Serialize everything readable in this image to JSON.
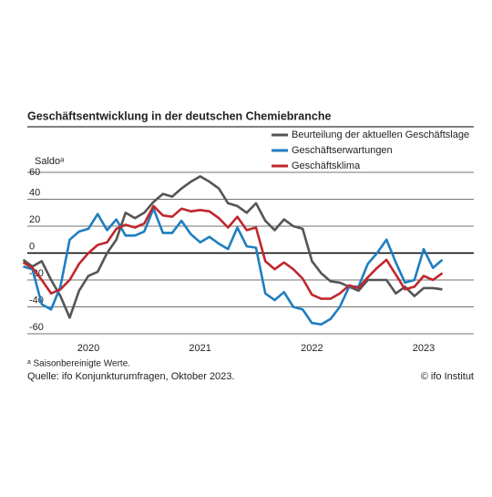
{
  "chart_data": {
    "type": "line",
    "title": "Geschäftsentwicklung in der deutschen Chemiebranche",
    "y_label": "Saldoᵃ",
    "footnote": "ᵃ Saisonbereinigte Werte.",
    "source": "Quelle: ifo Konjunkturumfragen, Oktober 2023.",
    "credit": "© ifo Institut",
    "x": [
      2019.917,
      2020.0,
      2020.083,
      2020.167,
      2020.25,
      2020.333,
      2020.417,
      2020.5,
      2020.583,
      2020.667,
      2020.75,
      2020.833,
      2020.917,
      2021.0,
      2021.083,
      2021.167,
      2021.25,
      2021.333,
      2021.417,
      2021.5,
      2021.583,
      2021.667,
      2021.75,
      2021.833,
      2021.917,
      2022.0,
      2022.083,
      2022.167,
      2022.25,
      2022.333,
      2022.417,
      2022.5,
      2022.583,
      2022.667,
      2022.75,
      2022.833,
      2022.917,
      2023.0,
      2023.083,
      2023.167,
      2023.25,
      2023.333,
      2023.417,
      2023.5,
      2023.583,
      2023.667
    ],
    "series": [
      {
        "name": "Beurteilung der aktuellen Geschäftslage",
        "color": "#555555",
        "values": [
          -5,
          -10,
          -6,
          -20,
          -32,
          -48,
          -28,
          -17,
          -14,
          0,
          10,
          30,
          26,
          30,
          38,
          44,
          42,
          48,
          53,
          57,
          53,
          48,
          37,
          35,
          30,
          37,
          24,
          17,
          25,
          20,
          18,
          -6,
          -15,
          -21,
          -22,
          -25,
          -28,
          -20,
          -20,
          -20,
          -30,
          -25,
          -32,
          -26,
          -26,
          -27
        ]
      },
      {
        "name": "Geschäftserwartungen",
        "color": "#1f7ec0",
        "values": [
          -10,
          -12,
          -38,
          -42,
          -25,
          10,
          16,
          18,
          29,
          17,
          25,
          13,
          13,
          16,
          33,
          15,
          15,
          24,
          14,
          8,
          12,
          7,
          3,
          19,
          5,
          4,
          -30,
          -35,
          -29,
          -40,
          -42,
          -52,
          -53,
          -49,
          -40,
          -25,
          -25,
          -8,
          0,
          10,
          -7,
          -22,
          -20,
          3,
          -11,
          -5
        ]
      },
      {
        "name": "Geschäftsklima",
        "color": "#c0272d",
        "values": [
          -7,
          -11,
          -20,
          -30,
          -27,
          -20,
          -8,
          0,
          6,
          8,
          18,
          21,
          19,
          22,
          35,
          28,
          27,
          33,
          31,
          32,
          31,
          26,
          19,
          27,
          17,
          19,
          -6,
          -12,
          -7,
          -12,
          -19,
          -31,
          -34,
          -34,
          -30,
          -24,
          -26,
          -18,
          -11,
          -5,
          -16,
          -27,
          -25,
          -17,
          -20,
          -15
        ]
      }
    ],
    "xlim": [
      2019.954,
      2023.948
    ],
    "xticks": [
      {
        "value": 2020.5,
        "label": "2020"
      },
      {
        "value": 2021.5,
        "label": "2021"
      },
      {
        "value": 2022.5,
        "label": "2022"
      },
      {
        "value": 2023.5,
        "label": "2023"
      }
    ],
    "ylim": [
      -60,
      60
    ],
    "yticks": [
      -60,
      -40,
      -20,
      0,
      20,
      40,
      60
    ],
    "grid": true
  }
}
